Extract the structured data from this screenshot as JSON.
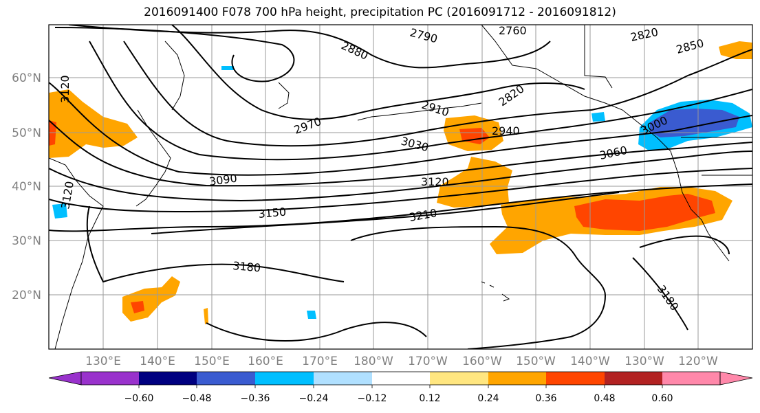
{
  "title": "2016091400 F078 700 hPa height, precipitation PC (2016091712 - 2016091812)",
  "lat_labels": [
    "60°N",
    "50°N",
    "40°N",
    "30°N",
    "20°N"
  ],
  "lon_labels": [
    "130°E",
    "140°E",
    "150°E",
    "160°E",
    "170°E",
    "180°W",
    "170°W",
    "160°W",
    "150°W",
    "140°W",
    "130°W",
    "120°W"
  ],
  "contour_labels": [
    "2790",
    "2760",
    "2820",
    "2850",
    "2880",
    "2820",
    "2910",
    "2940",
    "2970",
    "3030",
    "3060",
    "3090",
    "3120",
    "3150",
    "3210",
    "3180",
    "3180",
    "3120",
    "3120",
    "3000"
  ],
  "colorbar": {
    "ticks": [
      "−0.60",
      "−0.48",
      "−0.36",
      "−0.24",
      "−0.12",
      "0.12",
      "0.24",
      "0.36",
      "0.48",
      "0.60"
    ],
    "colors": [
      "#9932CC",
      "#000080",
      "#3A5BD0",
      "#00BFFF",
      "#B0E0FF",
      "#FFFFFF",
      "#FFE680",
      "#FFA500",
      "#FF4500",
      "#B22222",
      "#FF88AA",
      "#FF88AA"
    ]
  }
}
